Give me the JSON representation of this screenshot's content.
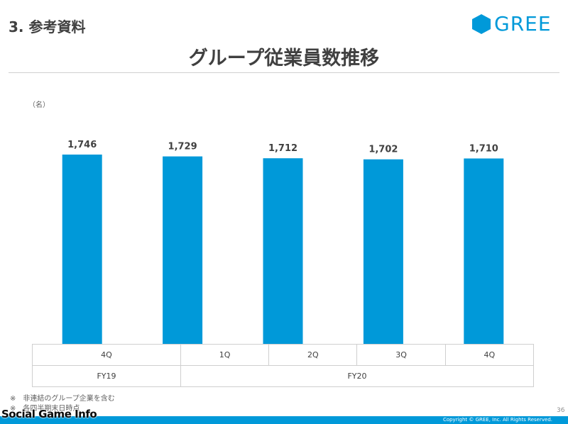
{
  "header": {
    "section_label": "3. 参考資料",
    "logo_text": "GREE",
    "title": "グループ従業員数推移"
  },
  "chart_data": {
    "type": "bar",
    "unit": "（名）",
    "categories": [
      "4Q",
      "1Q",
      "2Q",
      "3Q",
      "4Q"
    ],
    "groups": [
      {
        "label": "FY19",
        "categories": [
          "4Q"
        ]
      },
      {
        "label": "FY20",
        "categories": [
          "1Q",
          "2Q",
          "3Q",
          "4Q"
        ]
      }
    ],
    "values": [
      1746,
      1729,
      1712,
      1702,
      1710
    ],
    "value_labels": [
      "1,746",
      "1,729",
      "1,712",
      "1,702",
      "1,710"
    ],
    "bar_color": "#0099d9",
    "grid": false,
    "legend": "none"
  },
  "notes": [
    "※　非連結のグループ企業を含む",
    "※　各四半期末日時点"
  ],
  "footer": {
    "page_number": "36",
    "copyright": "Copyright © GREE, Inc. All Rights Reserved.",
    "bar_color": "#0099d9"
  },
  "watermark": "Social Game Info"
}
